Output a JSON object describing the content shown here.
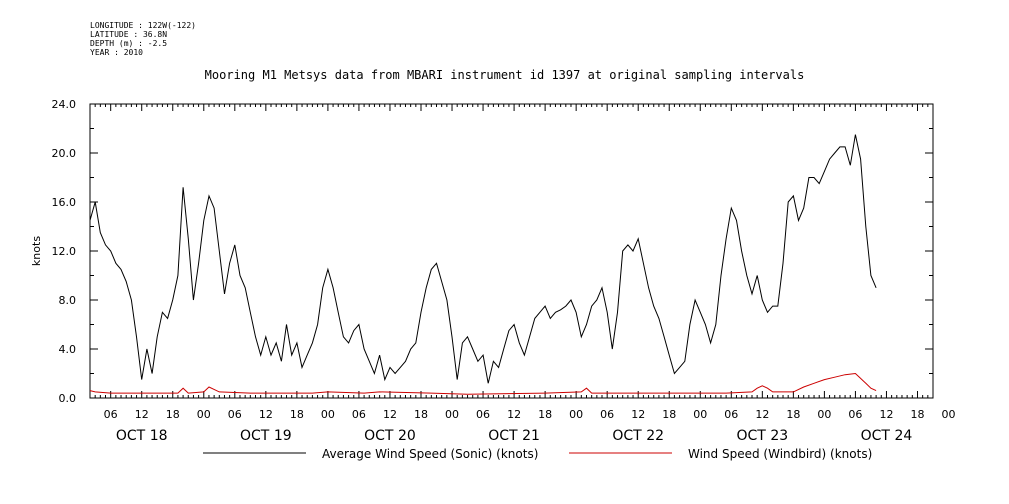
{
  "header": {
    "meta_lines": [
      "LONGITUDE : 122W(-122)",
      "LATITUDE : 36.8N",
      "DEPTH (m) : -2.5",
      "YEAR : 2010"
    ],
    "title": "Mooring M1 Metsys data from MBARI instrument id 1397 at original sampling intervals"
  },
  "chart_data": {
    "type": "line",
    "title": "Mooring M1 Metsys data from MBARI instrument id 1397 at original sampling intervals",
    "ylabel": "knots",
    "ylim": [
      0,
      24
    ],
    "yticks": [
      "0.0",
      "4.0",
      "8.0",
      "12.0",
      "16.0",
      "20.0",
      "24.0"
    ],
    "x_hour_ticks": [
      "06",
      "12",
      "18",
      "00",
      "06",
      "12",
      "18",
      "00",
      "06",
      "12",
      "18",
      "00",
      "06",
      "12",
      "18",
      "00",
      "06",
      "12",
      "18",
      "00",
      "06",
      "12",
      "18",
      "00",
      "06",
      "12",
      "18",
      "00"
    ],
    "x_day_labels": [
      "OCT 18",
      "OCT 19",
      "OCT 20",
      "OCT 21",
      "OCT 22",
      "OCT 23",
      "OCT 24"
    ],
    "xlim_hours": [
      2,
      165
    ],
    "series": [
      {
        "name": "Average Wind Speed (Sonic) (knots)",
        "color": "#000000",
        "points": [
          [
            2,
            14.5
          ],
          [
            3,
            16
          ],
          [
            4,
            13.5
          ],
          [
            5,
            12.5
          ],
          [
            6,
            12
          ],
          [
            7,
            11
          ],
          [
            8,
            10.5
          ],
          [
            9,
            9.5
          ],
          [
            10,
            8
          ],
          [
            11,
            5
          ],
          [
            12,
            1.5
          ],
          [
            13,
            4
          ],
          [
            14,
            2
          ],
          [
            15,
            5
          ],
          [
            16,
            7
          ],
          [
            17,
            6.5
          ],
          [
            18,
            8
          ],
          [
            19,
            10
          ],
          [
            20,
            17.2
          ],
          [
            21,
            13
          ],
          [
            22,
            8
          ],
          [
            23,
            11
          ],
          [
            24,
            14.5
          ],
          [
            25,
            16.5
          ],
          [
            26,
            15.5
          ],
          [
            27,
            12
          ],
          [
            28,
            8.5
          ],
          [
            29,
            11
          ],
          [
            30,
            12.5
          ],
          [
            31,
            10
          ],
          [
            32,
            9
          ],
          [
            33,
            7
          ],
          [
            34,
            5
          ],
          [
            35,
            3.5
          ],
          [
            36,
            5
          ],
          [
            37,
            3.5
          ],
          [
            38,
            4.5
          ],
          [
            39,
            3
          ],
          [
            40,
            6
          ],
          [
            41,
            3.5
          ],
          [
            42,
            4.5
          ],
          [
            43,
            2.5
          ],
          [
            44,
            3.5
          ],
          [
            45,
            4.5
          ],
          [
            46,
            6
          ],
          [
            47,
            9
          ],
          [
            48,
            10.5
          ],
          [
            49,
            9
          ],
          [
            50,
            7
          ],
          [
            51,
            5
          ],
          [
            52,
            4.5
          ],
          [
            53,
            5.5
          ],
          [
            54,
            6
          ],
          [
            55,
            4
          ],
          [
            56,
            3
          ],
          [
            57,
            2
          ],
          [
            58,
            3.5
          ],
          [
            59,
            1.5
          ],
          [
            60,
            2.5
          ],
          [
            61,
            2
          ],
          [
            62,
            2.5
          ],
          [
            63,
            3
          ],
          [
            64,
            4
          ],
          [
            65,
            4.5
          ],
          [
            66,
            7
          ],
          [
            67,
            9
          ],
          [
            68,
            10.5
          ],
          [
            69,
            11
          ],
          [
            70,
            9.5
          ],
          [
            71,
            8
          ],
          [
            72,
            5
          ],
          [
            73,
            1.5
          ],
          [
            74,
            4.5
          ],
          [
            75,
            5
          ],
          [
            76,
            4
          ],
          [
            77,
            3
          ],
          [
            78,
            3.5
          ],
          [
            79,
            1.2
          ],
          [
            80,
            3
          ],
          [
            81,
            2.5
          ],
          [
            82,
            4
          ],
          [
            83,
            5.5
          ],
          [
            84,
            6
          ],
          [
            85,
            4.5
          ],
          [
            86,
            3.5
          ],
          [
            87,
            5
          ],
          [
            88,
            6.5
          ],
          [
            89,
            7
          ],
          [
            90,
            7.5
          ],
          [
            91,
            6.5
          ],
          [
            92,
            7
          ],
          [
            93,
            7.2
          ],
          [
            94,
            7.5
          ],
          [
            95,
            8
          ],
          [
            96,
            7
          ],
          [
            97,
            5
          ],
          [
            98,
            6
          ],
          [
            99,
            7.5
          ],
          [
            100,
            8
          ],
          [
            101,
            9
          ],
          [
            102,
            7
          ],
          [
            103,
            4
          ],
          [
            104,
            7
          ],
          [
            105,
            12
          ],
          [
            106,
            12.5
          ],
          [
            107,
            12
          ],
          [
            108,
            13
          ],
          [
            109,
            11
          ],
          [
            110,
            9
          ],
          [
            111,
            7.5
          ],
          [
            112,
            6.5
          ],
          [
            113,
            5
          ],
          [
            114,
            3.5
          ],
          [
            115,
            2
          ],
          [
            116,
            2.5
          ],
          [
            117,
            3
          ],
          [
            118,
            6
          ],
          [
            119,
            8
          ],
          [
            120,
            7
          ],
          [
            121,
            6
          ],
          [
            122,
            4.5
          ],
          [
            123,
            6
          ],
          [
            124,
            10
          ],
          [
            125,
            13
          ],
          [
            126,
            15.5
          ],
          [
            127,
            14.5
          ],
          [
            128,
            12
          ],
          [
            129,
            10
          ],
          [
            130,
            8.5
          ],
          [
            131,
            10
          ],
          [
            132,
            8
          ],
          [
            133,
            7
          ],
          [
            134,
            7.5
          ],
          [
            135,
            7.5
          ],
          [
            136,
            11
          ],
          [
            137,
            16
          ],
          [
            138,
            16.5
          ],
          [
            139,
            14.5
          ],
          [
            140,
            15.5
          ],
          [
            141,
            18
          ],
          [
            142,
            18
          ],
          [
            143,
            17.5
          ],
          [
            144,
            18.5
          ],
          [
            145,
            19.5
          ],
          [
            146,
            20
          ],
          [
            147,
            20.5
          ],
          [
            148,
            20.5
          ],
          [
            149,
            19
          ],
          [
            150,
            21.5
          ],
          [
            151,
            19.5
          ],
          [
            152,
            14
          ],
          [
            153,
            10
          ],
          [
            154,
            9
          ]
        ]
      },
      {
        "name": "Wind Speed (Windbird) (knots)",
        "color": "#cc0000",
        "points": [
          [
            2,
            0.6
          ],
          [
            3,
            0.5
          ],
          [
            6,
            0.4
          ],
          [
            12,
            0.4
          ],
          [
            19,
            0.4
          ],
          [
            20,
            0.8
          ],
          [
            21,
            0.4
          ],
          [
            24,
            0.5
          ],
          [
            25,
            0.9
          ],
          [
            26,
            0.7
          ],
          [
            27,
            0.5
          ],
          [
            33,
            0.4
          ],
          [
            45,
            0.4
          ],
          [
            48,
            0.5
          ],
          [
            55,
            0.4
          ],
          [
            58,
            0.5
          ],
          [
            68,
            0.4
          ],
          [
            75,
            0.3
          ],
          [
            90,
            0.4
          ],
          [
            97,
            0.5
          ],
          [
            98,
            0.8
          ],
          [
            99,
            0.4
          ],
          [
            110,
            0.4
          ],
          [
            125,
            0.4
          ],
          [
            130,
            0.5
          ],
          [
            131,
            0.8
          ],
          [
            132,
            1.0
          ],
          [
            133,
            0.8
          ],
          [
            134,
            0.5
          ],
          [
            136,
            0.5
          ],
          [
            138,
            0.5
          ],
          [
            140,
            0.9
          ],
          [
            142,
            1.2
          ],
          [
            144,
            1.5
          ],
          [
            146,
            1.7
          ],
          [
            148,
            1.9
          ],
          [
            150,
            2.0
          ],
          [
            151,
            1.6
          ],
          [
            152,
            1.2
          ],
          [
            153,
            0.8
          ],
          [
            154,
            0.6
          ]
        ]
      }
    ],
    "legend_position": "bottom"
  }
}
